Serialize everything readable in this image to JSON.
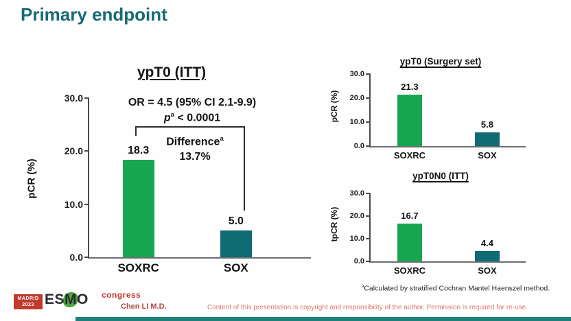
{
  "slide": {
    "title": "Primary endpoint",
    "author": "Chen LI M.D.",
    "copyright": "Content of this presentation is copyright and responsibility of the author. Permission is required for re-use.",
    "footnote": {
      "marker": "a",
      "text": "Calculated by stratified Cochran Mantel Haenszel method."
    },
    "logo": {
      "city": "MADRID",
      "year": "2023",
      "org": "ESMO",
      "suffix": "congress"
    }
  },
  "colors": {
    "title_teal": "#186a73",
    "bar_green": "#18a750",
    "bar_teal": "#0f6b74",
    "bottom_bar": "#1e7f7b",
    "logo_red": "#c23a2e",
    "footer_red": "#d87970"
  },
  "chart_data": [
    {
      "type": "bar",
      "title": "ypT0 (ITT)",
      "ylabel": "pCR (%)",
      "ylim": [
        0,
        30
      ],
      "yticks": [
        "30.0",
        "20.0",
        "10.0",
        "0.0"
      ],
      "categories": [
        "SOXRC",
        "SOX"
      ],
      "values": [
        18.3,
        5.0
      ],
      "value_labels": [
        "18.3",
        "5.0"
      ],
      "bar_colors": [
        "#18a750",
        "#0f6b74"
      ],
      "legend": "none",
      "grid": false,
      "annotations": {
        "or_text": "OR = 4.5 (95% CI 2.1-9.9)",
        "p_symbol": "p",
        "p_sup": "a",
        "p_rest": " < 0.0001",
        "difference_label": "Difference",
        "difference_sup": "a",
        "difference_value": "13.7%"
      }
    },
    {
      "type": "bar",
      "title": "ypT0 (Surgery set)",
      "ylabel": "pCR (%)",
      "ylim": [
        0,
        30
      ],
      "yticks": [
        "30.0",
        "20.0",
        "10.0",
        "0.0"
      ],
      "categories": [
        "SOXRC",
        "SOX"
      ],
      "values": [
        21.3,
        5.8
      ],
      "value_labels": [
        "21.3",
        "5.8"
      ],
      "bar_colors": [
        "#18a750",
        "#0f6b74"
      ],
      "legend": "none",
      "grid": false
    },
    {
      "type": "bar",
      "title": "ypT0N0 (ITT)",
      "ylabel": "tpCR (%)",
      "ylim": [
        0,
        30
      ],
      "yticks": [
        "30.0",
        "20.0",
        "10.0",
        "0.0"
      ],
      "categories": [
        "SOXRC",
        "SOX"
      ],
      "values": [
        16.7,
        4.4
      ],
      "value_labels": [
        "16.7",
        "4.4"
      ],
      "bar_colors": [
        "#18a750",
        "#0f6b74"
      ],
      "legend": "none",
      "grid": false
    }
  ]
}
